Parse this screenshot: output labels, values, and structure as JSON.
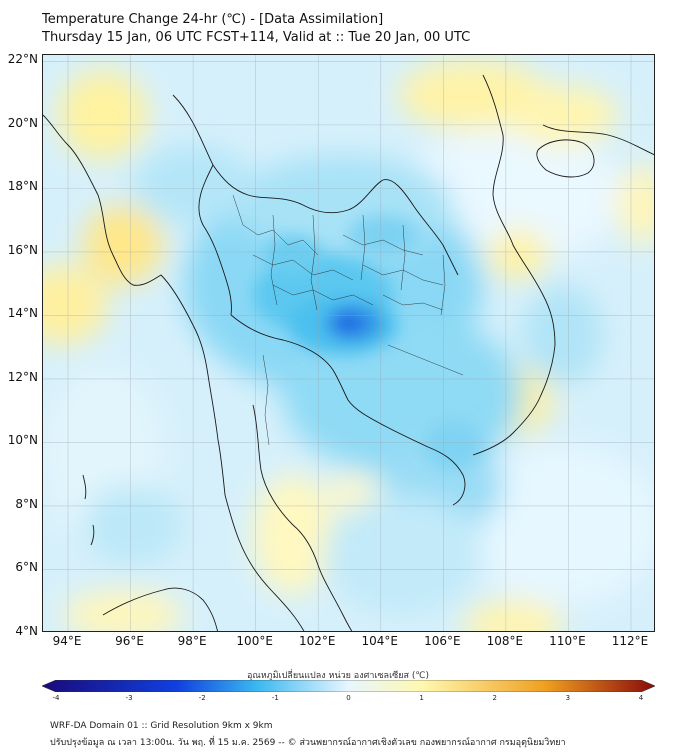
{
  "title": {
    "line1": "Temperature Change 24-hr (℃) - [Data Assimilation]",
    "line2": "Thursday 15 Jan, 06 UTC FCST+114, Valid at :: Tue 20 Jan, 00 UTC"
  },
  "map": {
    "lat_labels": [
      "22°N",
      "20°N",
      "18°N",
      "16°N",
      "14°N",
      "12°N",
      "10°N",
      "8°N",
      "6°N",
      "4°N"
    ],
    "lon_labels": [
      "94°E",
      "96°E",
      "98°E",
      "100°E",
      "102°E",
      "104°E",
      "106°E",
      "108°E",
      "110°E",
      "112°E"
    ],
    "lat_range": [
      4,
      22.2
    ],
    "lon_range": [
      93.2,
      112.8
    ]
  },
  "colorbar": {
    "title": "อุณหภูมิเปลี่ยนแปลง หน่วย องศาเซลเซียส (℃)",
    "ticks": [
      "-4",
      "-3",
      "-2",
      "-1",
      "0",
      "1",
      "2",
      "3",
      "4"
    ],
    "range": [
      -4,
      4
    ],
    "colors": {
      "min": "#1a0a7a",
      "cold": "#1040e0",
      "cool": "#3ab8f0",
      "neutral": "#e8f6ff",
      "warm": "#fff8b0",
      "hot": "#f0a020",
      "max": "#8a0a0a"
    }
  },
  "footer": {
    "line1": "WRF-DA Domain 01 :: Grid Resolution 9km x 9km",
    "line2": "ปรับปรุงข้อมูล ณ เวลา 13:00น. วัน พฤ. ที่ 15 ม.ค. 2569 -- © ส่วนพยากรณ์อากาศเชิงตัวเลข กองพยากรณ์อากาศ กรมอุตุนิยมวิทยา"
  }
}
